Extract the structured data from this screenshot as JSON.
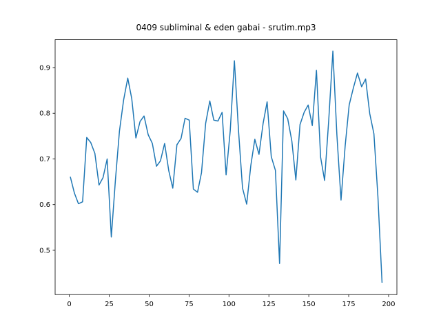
{
  "chart_data": {
    "type": "line",
    "title": "0409 subliminal & eden gabai - srutim.mp3",
    "color": "#1f77b4",
    "x": [
      0.6,
      3.2,
      5.7,
      8.3,
      10.9,
      13.4,
      16.0,
      18.6,
      21.1,
      23.7,
      26.3,
      28.9,
      31.4,
      34.0,
      36.6,
      39.1,
      41.7,
      44.3,
      46.8,
      49.4,
      52.0,
      54.6,
      57.1,
      59.7,
      62.3,
      64.8,
      67.4,
      70.0,
      72.5,
      75.1,
      77.7,
      80.3,
      82.8,
      85.4,
      88.0,
      90.5,
      93.1,
      95.7,
      98.2,
      100.8,
      103.4,
      106.0,
      108.5,
      111.1,
      113.7,
      116.2,
      118.8,
      121.4,
      123.9,
      126.5,
      129.1,
      131.7,
      134.2,
      136.8,
      139.4,
      141.9,
      144.5,
      147.1,
      149.6,
      152.2,
      154.8,
      157.4,
      159.9,
      162.5,
      165.1,
      167.6,
      170.2,
      172.8,
      175.3,
      177.9,
      180.5,
      183.1,
      185.6,
      188.2,
      190.8,
      193.3,
      195.9
    ],
    "values": [
      0.661,
      0.625,
      0.602,
      0.606,
      0.747,
      0.736,
      0.712,
      0.643,
      0.659,
      0.7,
      0.529,
      0.655,
      0.761,
      0.829,
      0.877,
      0.832,
      0.746,
      0.782,
      0.794,
      0.753,
      0.734,
      0.684,
      0.696,
      0.734,
      0.674,
      0.636,
      0.731,
      0.745,
      0.789,
      0.785,
      0.634,
      0.627,
      0.67,
      0.778,
      0.827,
      0.785,
      0.783,
      0.802,
      0.665,
      0.762,
      0.915,
      0.761,
      0.636,
      0.601,
      0.686,
      0.743,
      0.71,
      0.778,
      0.825,
      0.705,
      0.675,
      0.471,
      0.805,
      0.788,
      0.739,
      0.654,
      0.775,
      0.802,
      0.818,
      0.773,
      0.894,
      0.704,
      0.653,
      0.785,
      0.936,
      0.753,
      0.61,
      0.729,
      0.818,
      0.855,
      0.888,
      0.858,
      0.875,
      0.799,
      0.755,
      0.618,
      0.429
    ],
    "xlim": [
      -8.9,
      205.2
    ],
    "ylim": [
      0.403,
      0.961
    ],
    "xticks": [
      0,
      25,
      50,
      75,
      100,
      125,
      150,
      175,
      200
    ],
    "yticks": [
      0.5,
      0.6,
      0.7,
      0.8,
      0.9
    ]
  }
}
